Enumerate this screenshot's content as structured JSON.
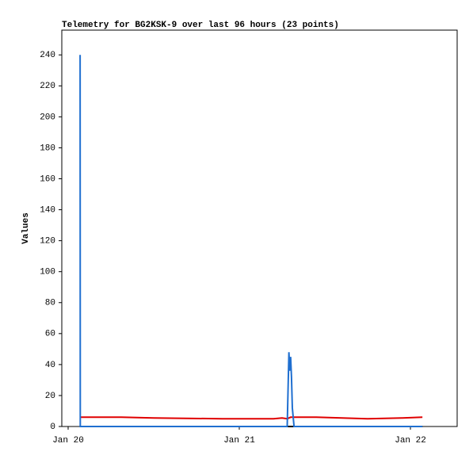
{
  "chart_data": {
    "type": "line",
    "title": "Telemetry for BG2KSK-9 over last 96 hours (23 points)",
    "y_label": "Values",
    "xlim": [
      19.963,
      22.273
    ],
    "xticks": [
      {
        "value": 20,
        "label": "Jan 20"
      },
      {
        "value": 21,
        "label": "Jan 21"
      },
      {
        "value": 22,
        "label": "Jan 22"
      }
    ],
    "ylim": [
      0,
      256
    ],
    "yticks": [
      0,
      20,
      40,
      60,
      80,
      100,
      120,
      140,
      160,
      180,
      200,
      220,
      240
    ],
    "series": [
      {
        "color": "#000000",
        "x": [
          20.07,
          22.07
        ],
        "values": [
          0,
          0
        ]
      },
      {
        "color": "#e00000",
        "x": [
          20.07,
          20.3,
          20.31,
          20.5,
          20.9,
          21.2,
          21.25,
          21.28,
          21.3,
          21.45,
          21.6,
          21.75,
          21.95,
          22.07
        ],
        "values": [
          6,
          6,
          6,
          5.5,
          5,
          5,
          5.5,
          5,
          6,
          6,
          5.5,
          5,
          5.5,
          6
        ]
      },
      {
        "color": "#1f6fd0",
        "x": [
          20.07,
          20.071,
          21.28,
          21.29,
          21.295,
          21.3,
          21.305,
          21.31,
          21.32,
          22.07
        ],
        "values": [
          240,
          0,
          0,
          48,
          36,
          45,
          32,
          12,
          0,
          0
        ]
      }
    ]
  }
}
